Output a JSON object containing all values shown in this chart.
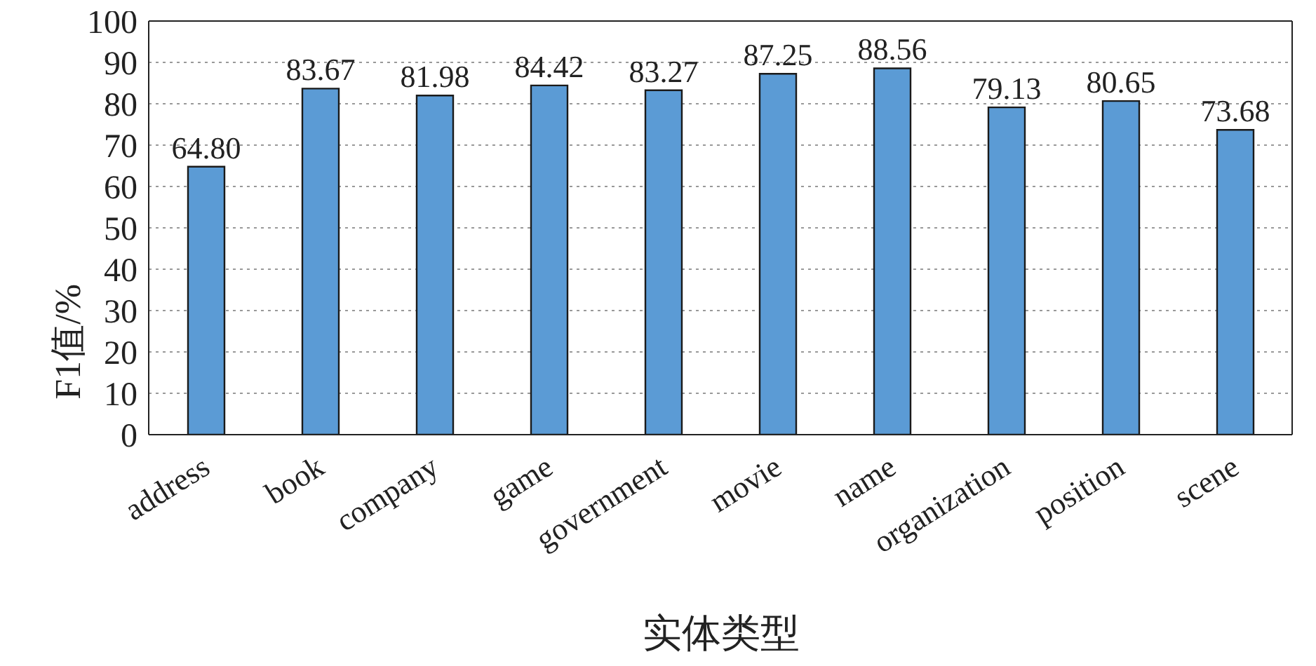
{
  "chart_data": {
    "type": "bar",
    "xlabel": "实体类型",
    "ylabel": "F1值/%",
    "categories": [
      "address",
      "book",
      "company",
      "game",
      "government",
      "movie",
      "name",
      "organization",
      "position",
      "scene"
    ],
    "values": [
      64.8,
      83.67,
      81.98,
      84.42,
      83.27,
      87.25,
      88.56,
      79.13,
      80.65,
      73.68
    ],
    "value_labels": [
      "64.80",
      "83.67",
      "81.98",
      "84.42",
      "83.27",
      "87.25",
      "88.56",
      "79.13",
      "80.65",
      "73.68"
    ],
    "color": "#5b9bd5",
    "ylim": [
      0,
      100
    ],
    "yticks": [
      0,
      10,
      20,
      30,
      40,
      50,
      60,
      70,
      80,
      90,
      100
    ],
    "grid": "y"
  }
}
